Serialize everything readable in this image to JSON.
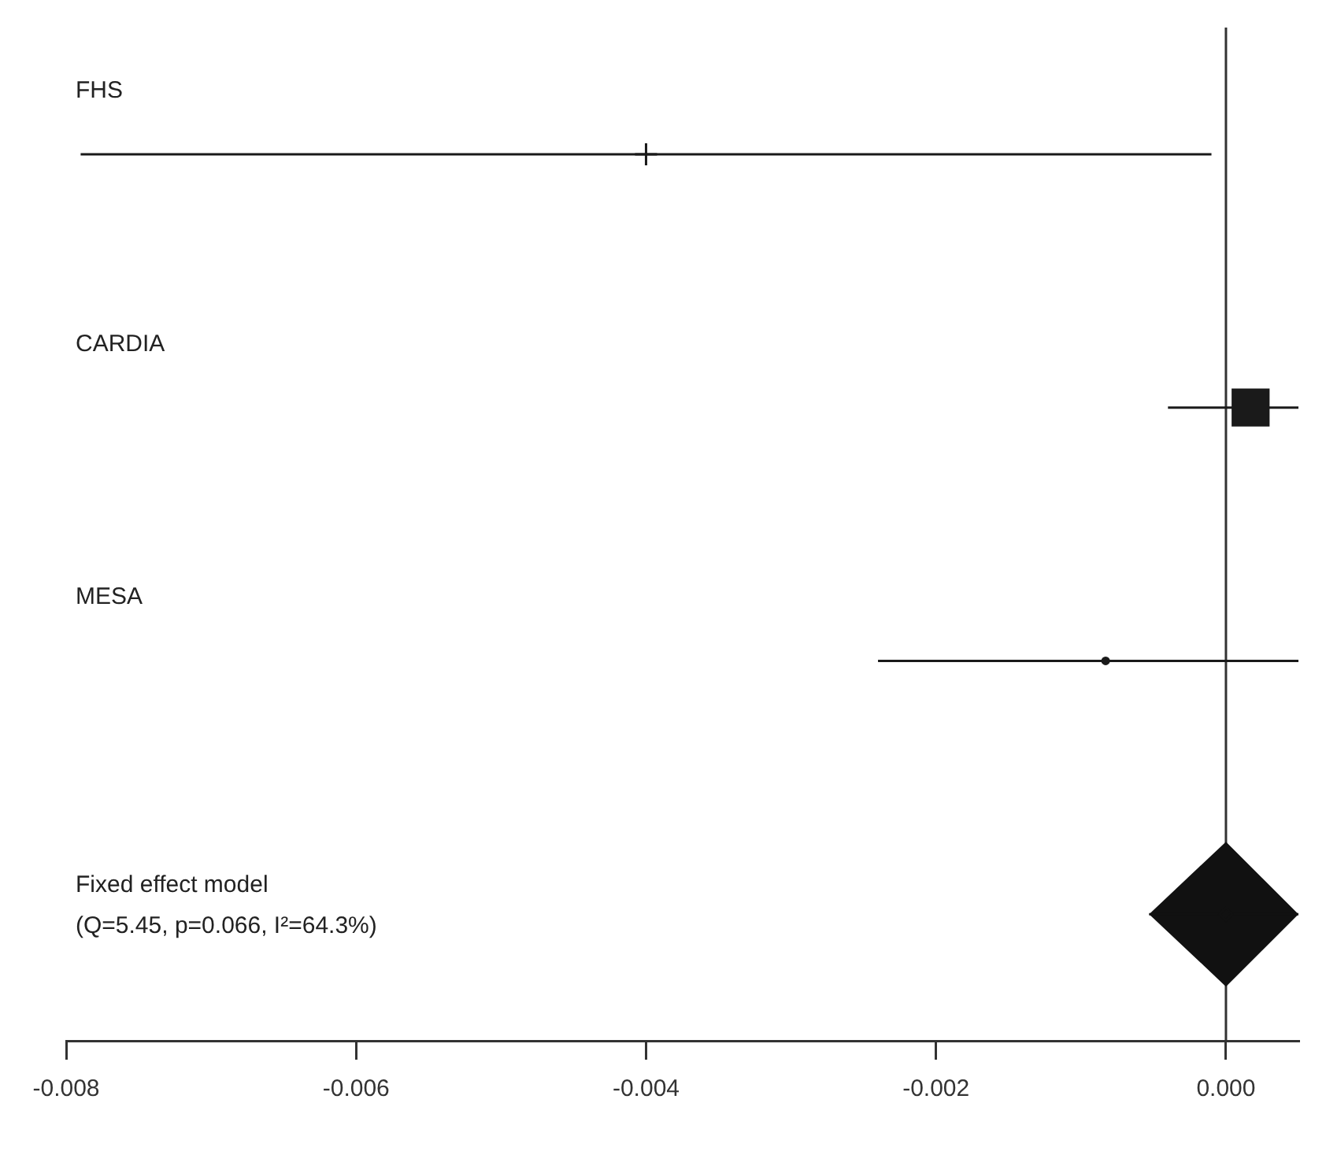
{
  "chart_data": {
    "type": "scatter",
    "orientation": "horizontal",
    "categories": [
      "FHS",
      "CARDIA",
      "MESA",
      "Fixed effect model"
    ],
    "series": [
      {
        "marker": "cross",
        "color": "#1a1a1a",
        "values": [
          -0.004,
          null,
          null,
          null
        ],
        "errors": [
          [
            -0.0079,
            -0.0001
          ],
          null,
          null,
          null
        ]
      },
      {
        "marker": "square",
        "color": "#1a1a1a",
        "values": [
          null,
          0.00017,
          null,
          null
        ],
        "errors": [
          null,
          [
            -0.0004,
            0.0005
          ],
          null,
          null
        ]
      },
      {
        "marker": "circle",
        "color": "#1a1a1a",
        "values": [
          null,
          null,
          -0.00083,
          null
        ],
        "errors": [
          null,
          null,
          [
            -0.0024,
            0.0005
          ],
          null
        ]
      },
      {
        "marker": "diamond",
        "color": "#111111",
        "values": [
          null,
          null,
          null,
          0.0
        ],
        "errors": [
          null,
          null,
          null,
          [
            -0.00053,
            0.0005
          ]
        ]
      }
    ],
    "xlim": [
      -0.008,
      0.0005
    ],
    "xticks": [
      -0.008,
      -0.006,
      -0.004,
      -0.002,
      {
        "value": 0,
        "label": "0.000"
      }
    ],
    "ref_lines": [
      {
        "axis": "x",
        "value": 0,
        "color": "#333333"
      }
    ],
    "annotations": [
      "(Q=5.45, p=0.066, I²=64.3%)"
    ],
    "grid": false,
    "legend": false
  }
}
